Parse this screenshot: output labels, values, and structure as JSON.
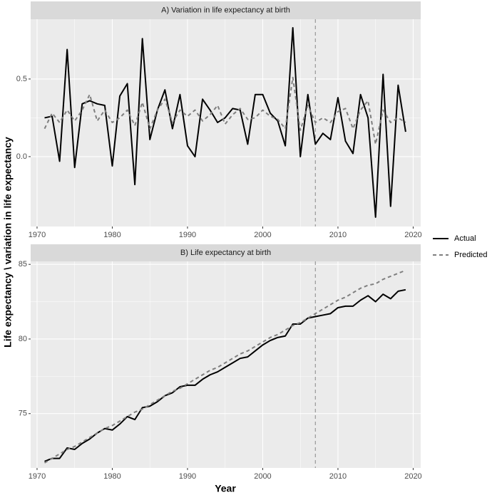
{
  "chart_data": [
    {
      "type": "line",
      "title": "A) Variation in life expectancy at birth",
      "y_label": "Life expectancy \\ variation in life expectancy",
      "legend": "right",
      "x": [
        1971,
        1972,
        1973,
        1974,
        1975,
        1976,
        1977,
        1978,
        1979,
        1980,
        1981,
        1982,
        1983,
        1984,
        1985,
        1986,
        1987,
        1988,
        1989,
        1990,
        1991,
        1992,
        1993,
        1994,
        1995,
        1996,
        1997,
        1998,
        1999,
        2000,
        2001,
        2002,
        2003,
        2004,
        2005,
        2006,
        2007,
        2008,
        2009,
        2010,
        2011,
        2012,
        2013,
        2014,
        2015,
        2016,
        2017,
        2018,
        2019
      ],
      "series": [
        {
          "name": "Actual",
          "color": "#000000",
          "linestyle": "solid",
          "values": [
            0.25,
            0.26,
            -0.03,
            0.69,
            -0.07,
            0.34,
            0.36,
            0.34,
            0.33,
            -0.06,
            0.39,
            0.47,
            -0.18,
            0.76,
            0.11,
            0.3,
            0.43,
            0.18,
            0.4,
            0.07,
            0.0,
            0.37,
            0.3,
            0.22,
            0.25,
            0.31,
            0.3,
            0.08,
            0.4,
            0.4,
            0.28,
            0.23,
            0.07,
            0.83,
            0.0,
            0.4,
            0.08,
            0.15,
            0.11,
            0.38,
            0.1,
            0.02,
            0.4,
            0.25,
            -0.39,
            0.53,
            -0.32,
            0.46,
            0.16
          ]
        },
        {
          "name": "Predicted",
          "color": "#7f7f7f",
          "linestyle": "dashed",
          "values": [
            0.18,
            0.28,
            0.22,
            0.3,
            0.23,
            0.3,
            0.4,
            0.23,
            0.3,
            0.22,
            0.25,
            0.3,
            0.2,
            0.35,
            0.18,
            0.3,
            0.37,
            0.22,
            0.3,
            0.26,
            0.3,
            0.23,
            0.27,
            0.33,
            0.21,
            0.27,
            0.31,
            0.24,
            0.25,
            0.3,
            0.26,
            0.24,
            0.18,
            0.51,
            0.17,
            0.33,
            0.22,
            0.25,
            0.22,
            0.29,
            0.31,
            0.18,
            0.3,
            0.36,
            0.08,
            0.3,
            0.22,
            0.25,
            0.22
          ]
        }
      ],
      "vline": 2007,
      "xlim": [
        1969.15,
        2021.0
      ],
      "xticks": [
        1970,
        1980,
        1990,
        2000,
        2010,
        2020
      ],
      "ylim": [
        -0.45,
        0.885
      ],
      "yticks": [
        {
          "value": 0,
          "label": "0.0"
        },
        {
          "value": 0.5,
          "label": "0.5"
        }
      ],
      "grid": true
    },
    {
      "type": "line",
      "title": "B) Life expectancy at birth",
      "x_label": "Year",
      "x": [
        1971,
        1972,
        1973,
        1974,
        1975,
        1976,
        1977,
        1978,
        1979,
        1980,
        1981,
        1982,
        1983,
        1984,
        1985,
        1986,
        1987,
        1988,
        1989,
        1990,
        1991,
        1992,
        1993,
        1994,
        1995,
        1996,
        1997,
        1998,
        1999,
        2000,
        2001,
        2002,
        2003,
        2004,
        2005,
        2006,
        2007,
        2008,
        2009,
        2010,
        2011,
        2012,
        2013,
        2014,
        2015,
        2016,
        2017,
        2018,
        2019
      ],
      "series": [
        {
          "color": "#000000",
          "linestyle": "solid",
          "values": [
            71.8,
            72.0,
            72.0,
            72.7,
            72.6,
            73.0,
            73.3,
            73.7,
            74.0,
            73.9,
            74.3,
            74.8,
            74.6,
            75.4,
            75.5,
            75.8,
            76.2,
            76.4,
            76.8,
            76.9,
            76.9,
            77.3,
            77.6,
            77.8,
            78.1,
            78.4,
            78.7,
            78.8,
            79.2,
            79.6,
            79.9,
            80.1,
            80.2,
            81.0,
            81.0,
            81.4,
            81.5,
            81.6,
            81.7,
            82.1,
            82.2,
            82.2,
            82.6,
            82.9,
            82.5,
            83.0,
            82.7,
            83.2,
            83.3
          ]
        },
        {
          "color": "#7f7f7f",
          "linestyle": "dashed",
          "values": [
            71.7,
            72.0,
            72.3,
            72.6,
            72.8,
            73.1,
            73.4,
            73.7,
            74.0,
            74.2,
            74.5,
            74.8,
            75.1,
            75.3,
            75.6,
            75.9,
            76.2,
            76.5,
            76.7,
            77.0,
            77.3,
            77.6,
            77.9,
            78.1,
            78.4,
            78.7,
            79.0,
            79.2,
            79.5,
            79.8,
            80.1,
            80.3,
            80.6,
            80.9,
            81.1,
            81.4,
            81.7,
            82.0,
            82.3,
            82.6,
            82.8,
            83.1,
            83.4,
            83.6,
            83.7,
            84.0,
            84.2,
            84.4,
            84.6
          ]
        }
      ],
      "vline": 2007,
      "xlim": [
        1969.15,
        2021.0
      ],
      "xticks": [
        1970,
        1980,
        1990,
        2000,
        2010,
        2020
      ],
      "ylim": [
        71.36,
        85.2
      ],
      "yticks": [
        75,
        80,
        85
      ],
      "grid": true
    }
  ]
}
